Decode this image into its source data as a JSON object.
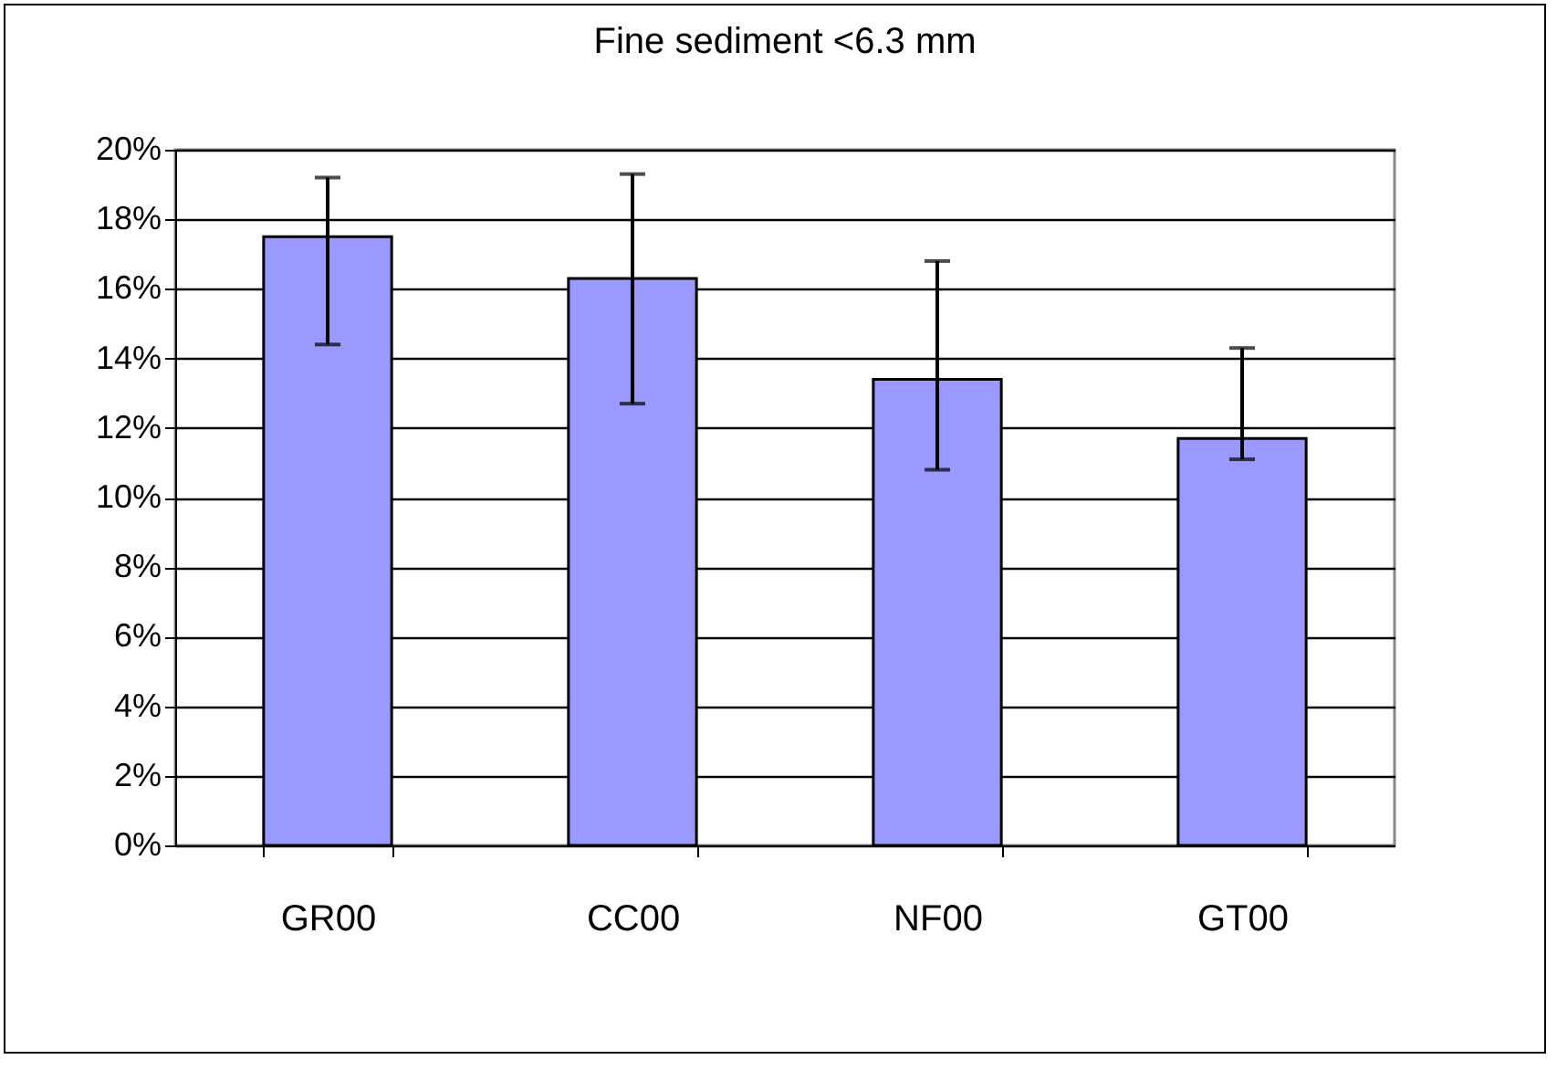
{
  "chart_data": {
    "type": "bar",
    "title": "Fine sediment <6.3 mm",
    "categories": [
      "GR00",
      "CC00",
      "NF00",
      "GT00"
    ],
    "values": [
      17.5,
      16.3,
      13.4,
      11.7
    ],
    "errors": [
      [
        14.4,
        19.2
      ],
      [
        12.7,
        19.3
      ],
      [
        10.8,
        16.8
      ],
      [
        11.1,
        14.3
      ]
    ],
    "color": "#9999ff",
    "ylim": [
      0,
      20
    ],
    "yticks": [
      {
        "value": 0,
        "label": "0%"
      },
      {
        "value": 2,
        "label": "2%"
      },
      {
        "value": 4,
        "label": "4%"
      },
      {
        "value": 6,
        "label": "6%"
      },
      {
        "value": 8,
        "label": "8%"
      },
      {
        "value": 10,
        "label": "10%"
      },
      {
        "value": 12,
        "label": "12%"
      },
      {
        "value": 14,
        "label": "14%"
      },
      {
        "value": 16,
        "label": "16%"
      },
      {
        "value": 18,
        "label": "18%"
      },
      {
        "value": 20,
        "label": "20%"
      }
    ],
    "grid": "y"
  }
}
